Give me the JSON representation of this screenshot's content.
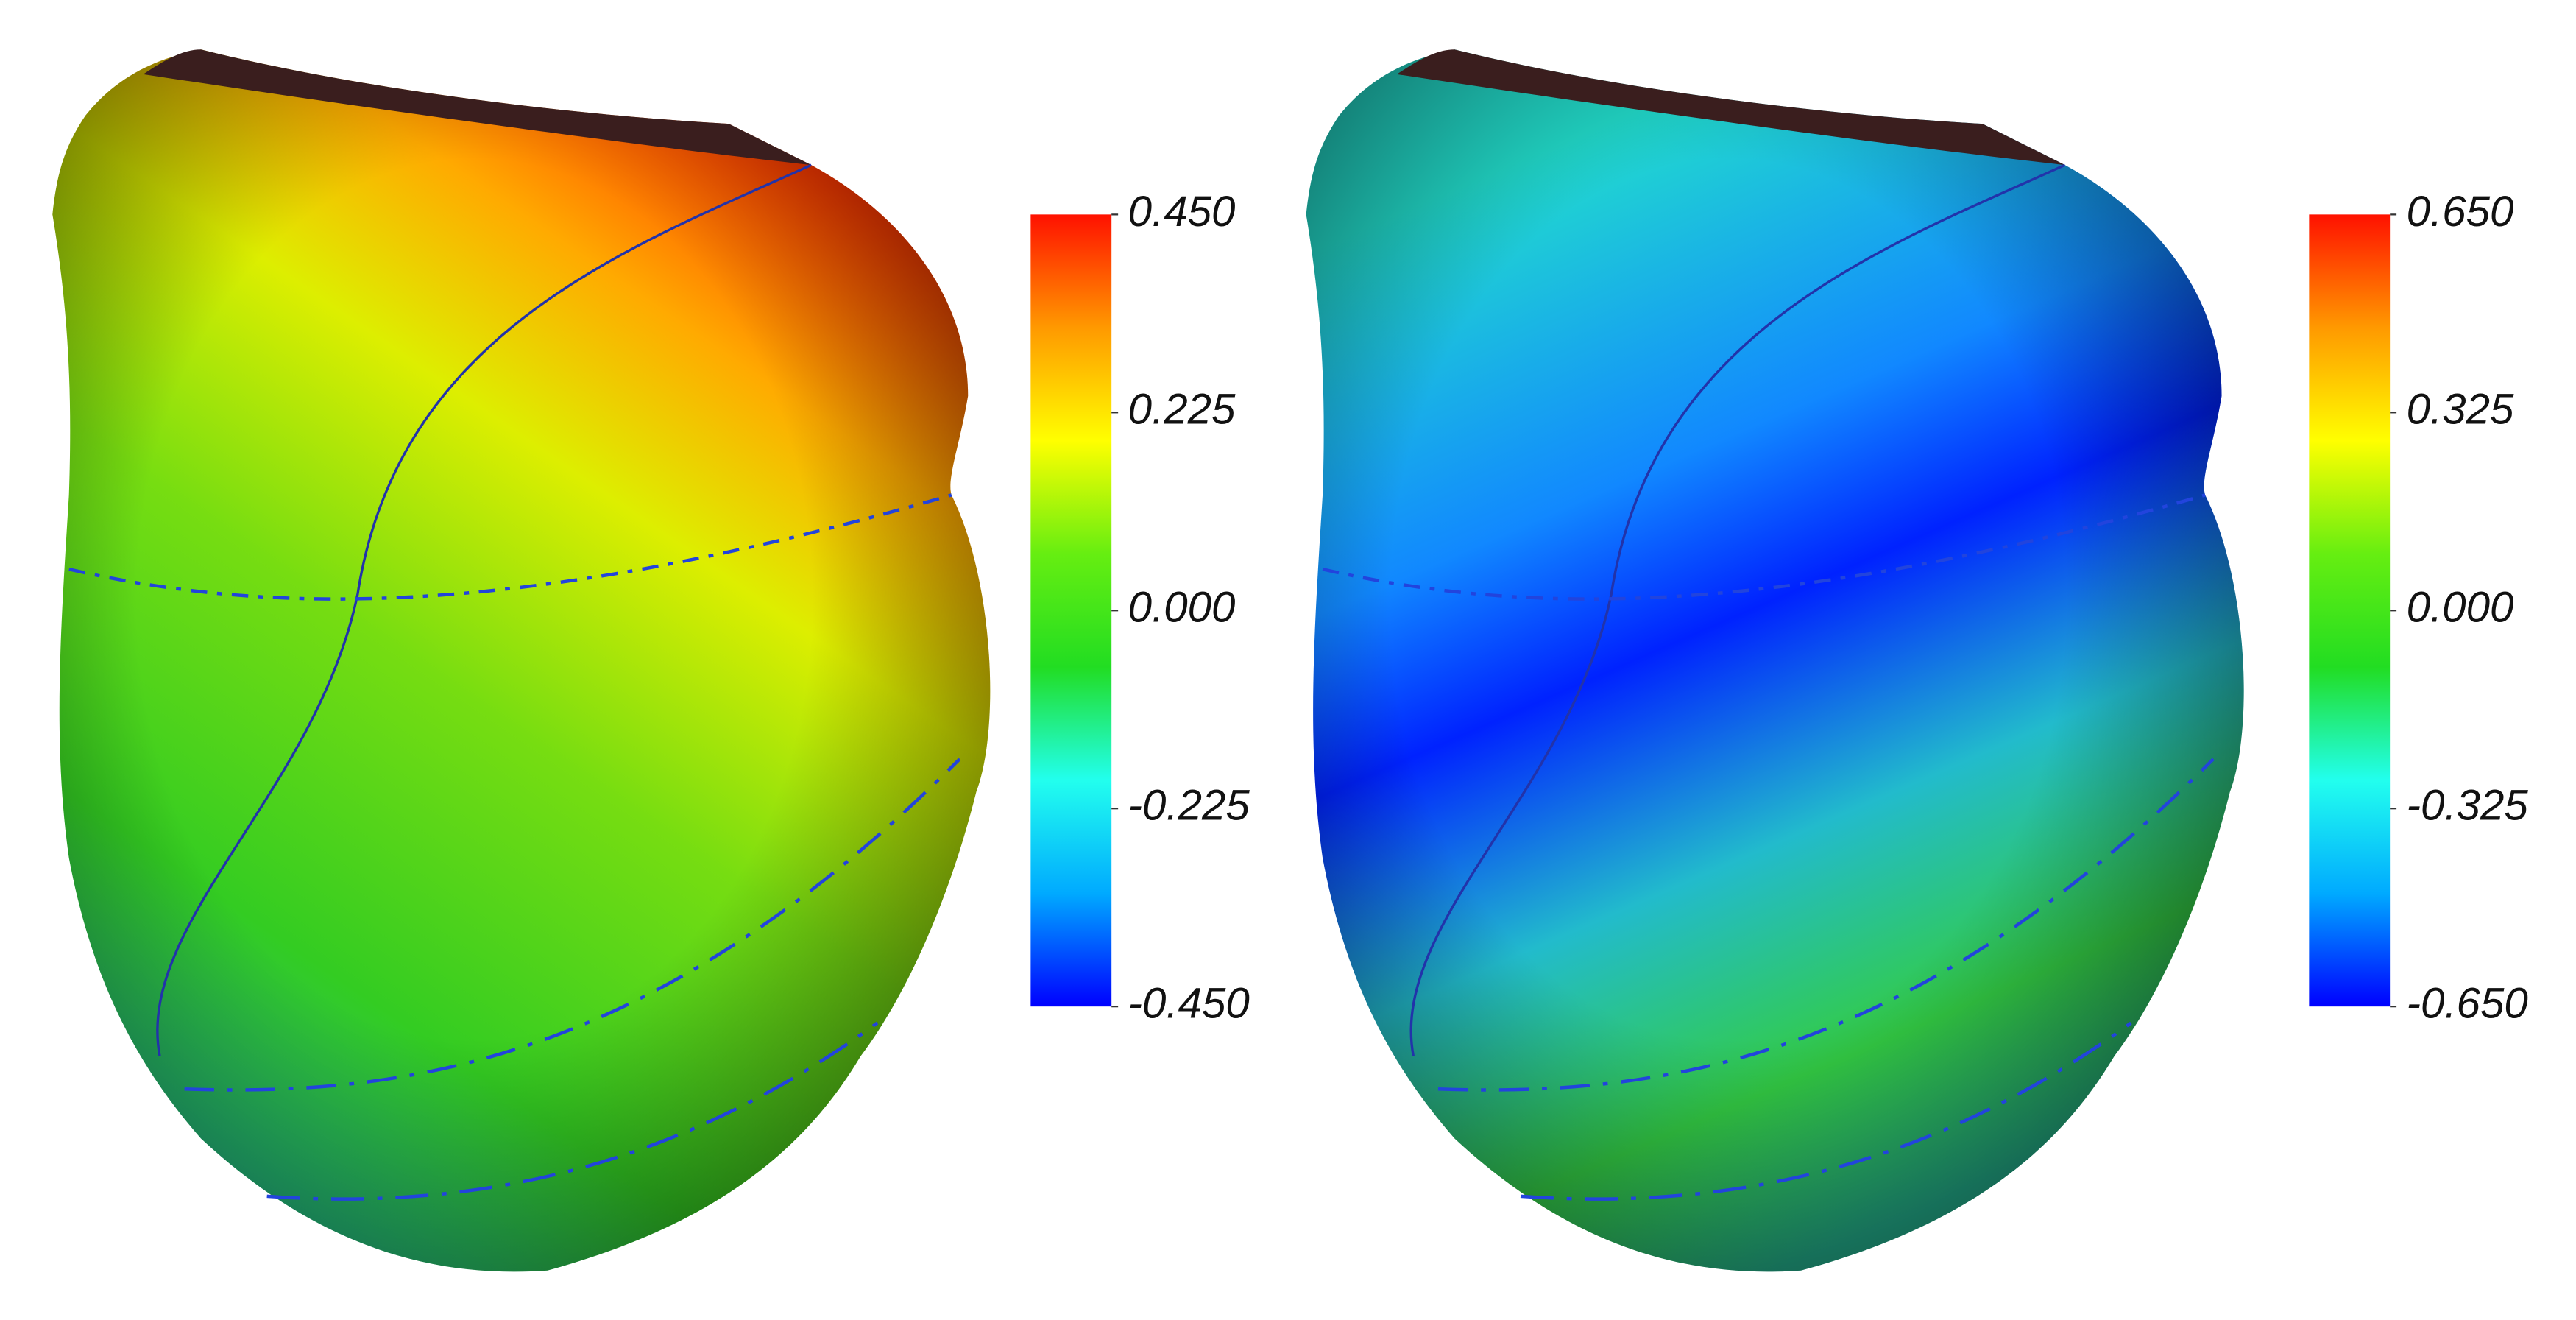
{
  "chart_data": [
    {
      "type": "colorbar",
      "ylim": [
        -0.45,
        0.45
      ],
      "yticks": [
        {
          "value": 0.45,
          "label": "0.450"
        },
        {
          "value": 0.225,
          "label": "0.225"
        },
        {
          "value": 0,
          "label": "0.000"
        },
        {
          "value": -0.225,
          "label": "-0.225"
        },
        {
          "value": -0.45,
          "label": "-0.450"
        }
      ],
      "colormap": [
        "#0000ff",
        "#00aaff",
        "#22ffee",
        "#22dd22",
        "#66ee11",
        "#ffff00",
        "#ff9900",
        "#ff1100"
      ]
    },
    {
      "type": "colorbar",
      "ylim": [
        -0.65,
        0.65
      ],
      "yticks": [
        {
          "value": 0.65,
          "label": "0.650"
        },
        {
          "value": 0.325,
          "label": "0.325"
        },
        {
          "value": 0,
          "label": "0.000"
        },
        {
          "value": -0.325,
          "label": "-0.325"
        },
        {
          "value": -0.65,
          "label": "-0.650"
        }
      ],
      "colormap": [
        "#0000ff",
        "#00aaff",
        "#22ffee",
        "#22dd22",
        "#66ee11",
        "#ffff00",
        "#ff9900",
        "#ff1100"
      ]
    }
  ]
}
